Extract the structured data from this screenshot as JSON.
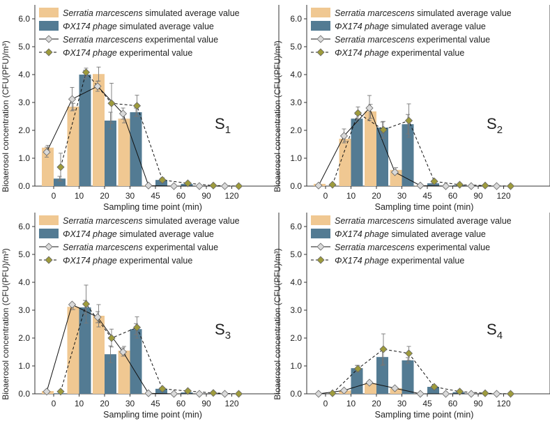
{
  "colors": {
    "serratia_sim": "#f0c892",
    "phage_sim": "#537b93",
    "serratia_exp_marker": "#d9d9d9",
    "phage_exp_marker": "#9e9b3c",
    "axis": "#333333"
  },
  "legend": {
    "serratia_sim_italic": "Serratia marcescens",
    "serratia_sim_rest": " simulated average value",
    "phage_sim_italic": "ΦX174 phage",
    "phage_sim_rest": " simulated average value",
    "serratia_exp_italic": "Serratia marcescens",
    "serratia_exp_rest": " experimental value",
    "phage_exp_italic": "ΦX174 phage",
    "phage_exp_rest": " experimental value"
  },
  "chart_data": [
    {
      "type": "bar",
      "panel_label": "S",
      "panel_sub": "1",
      "categories": [
        "0",
        "10",
        "20",
        "30",
        "45",
        "60",
        "90",
        "120"
      ],
      "xlabel": "Sampling time point (min)",
      "ylabel": "Bioaerosol concentration (CFU(PFU)/m³)",
      "ylim": [
        0,
        6.5
      ],
      "yticks": [
        "0.0",
        "1.0",
        "2.0",
        "3.0",
        "4.0",
        "5.0",
        "6.0"
      ],
      "legend_location": "upper-left",
      "series": [
        {
          "name": "Serratia marcescens simulated average value",
          "kind": "bar",
          "values": [
            1.38,
            2.85,
            4.02,
            2.42,
            0.02,
            0.0,
            0.0,
            0.0
          ],
          "errors": [
            0.08,
            0.12,
            0.25,
            0.15,
            0,
            0,
            0,
            0
          ]
        },
        {
          "name": "ΦX174 phage simulated average value",
          "kind": "bar",
          "values": [
            0.27,
            4.0,
            2.35,
            2.65,
            0.22,
            0.08,
            0.0,
            0.0
          ],
          "errors": [
            0.08,
            0.15,
            0.3,
            0.15,
            0.05,
            0.02,
            0,
            0
          ]
        },
        {
          "name": "Serratia marcescens experimental value",
          "kind": "line",
          "values": [
            1.22,
            3.12,
            3.58,
            2.6,
            0.02,
            0.0,
            0.0,
            0.0
          ],
          "errors": [
            0.18,
            0.42,
            0.18,
            0.2,
            0,
            0,
            0,
            0
          ]
        },
        {
          "name": "ΦX174 phage experimental value",
          "kind": "line",
          "values": [
            0.68,
            4.08,
            2.97,
            2.88,
            0.22,
            0.1,
            0.02,
            0.0
          ],
          "errors": [
            0.5,
            0.15,
            0.72,
            0.38,
            0.08,
            0.03,
            0,
            0
          ]
        }
      ]
    },
    {
      "type": "bar",
      "panel_label": "S",
      "panel_sub": "2",
      "categories": [
        "0",
        "10",
        "20",
        "30",
        "45",
        "60",
        "90",
        "120"
      ],
      "xlabel": "Sampling time point (min)",
      "ylabel": "Bioaerosol concentration (CFU(PFU)/m³)",
      "ylim": [
        0,
        6.5
      ],
      "yticks": [
        "0.0",
        "1.0",
        "2.0",
        "3.0",
        "4.0",
        "5.0",
        "6.0"
      ],
      "legend_location": "upper-left",
      "series": [
        {
          "name": "Serratia marcescens simulated average value",
          "kind": "bar",
          "values": [
            0.08,
            1.7,
            2.68,
            0.58,
            0.02,
            0.0,
            0.0,
            0.0
          ],
          "errors": [
            0,
            0.1,
            0.25,
            0.08,
            0,
            0,
            0,
            0
          ]
        },
        {
          "name": "ΦX174 phage simulated average value",
          "kind": "bar",
          "values": [
            0.0,
            2.42,
            2.1,
            2.22,
            0.1,
            0.03,
            0.0,
            0.0
          ],
          "errors": [
            0,
            0.15,
            0.2,
            0.35,
            0.03,
            0.01,
            0,
            0
          ]
        },
        {
          "name": "Serratia marcescens experimental value",
          "kind": "line",
          "values": [
            0.02,
            1.8,
            2.8,
            0.5,
            0.02,
            0.0,
            0.0,
            0.0
          ],
          "errors": [
            0,
            0.25,
            0.45,
            0.05,
            0,
            0,
            0,
            0
          ]
        },
        {
          "name": "ΦX174 phage experimental value",
          "kind": "line",
          "values": [
            0.05,
            2.62,
            2.02,
            2.35,
            0.17,
            0.05,
            0.02,
            0.0
          ],
          "errors": [
            0,
            0.22,
            0.3,
            0.6,
            0.05,
            0.02,
            0,
            0
          ]
        }
      ]
    },
    {
      "type": "bar",
      "panel_label": "S",
      "panel_sub": "3",
      "categories": [
        "0",
        "10",
        "20",
        "30",
        "45",
        "60",
        "90",
        "120"
      ],
      "xlabel": "Sampling time point (min)",
      "ylabel": "Bioaerosol concentration (CFU(PFU)/m³)",
      "ylim": [
        0,
        6.5
      ],
      "yticks": [
        "0.0",
        "1.0",
        "2.0",
        "3.0",
        "4.0",
        "5.0",
        "6.0"
      ],
      "legend_location": "upper-left",
      "series": [
        {
          "name": "Serratia marcescens simulated average value",
          "kind": "bar",
          "values": [
            0.1,
            3.12,
            2.8,
            1.55,
            0.02,
            0.0,
            0.0,
            0.0
          ],
          "errors": [
            0,
            0.1,
            0.4,
            0.15,
            0,
            0,
            0,
            0
          ]
        },
        {
          "name": "ΦX174 phage simulated average value",
          "kind": "bar",
          "values": [
            0.02,
            3.1,
            1.42,
            2.32,
            0.18,
            0.05,
            0.0,
            0.0
          ],
          "errors": [
            0,
            0.25,
            0.3,
            0.2,
            0.04,
            0.01,
            0,
            0
          ]
        },
        {
          "name": "Serratia marcescens experimental value",
          "kind": "line",
          "values": [
            0.08,
            3.2,
            2.75,
            1.5,
            0.02,
            0.0,
            0.0,
            0.0
          ],
          "errors": [
            0,
            0.05,
            0.2,
            0.15,
            0,
            0,
            0,
            0
          ]
        },
        {
          "name": "ΦX174 phage experimental value",
          "kind": "line",
          "values": [
            0.08,
            3.22,
            2.0,
            2.38,
            0.18,
            0.1,
            0.03,
            0.0
          ],
          "errors": [
            0,
            0.68,
            0.32,
            0.38,
            0.05,
            0.03,
            0,
            0
          ]
        }
      ]
    },
    {
      "type": "bar",
      "panel_label": "S",
      "panel_sub": "4",
      "categories": [
        "0",
        "10",
        "20",
        "30",
        "45",
        "60",
        "90",
        "120"
      ],
      "xlabel": "Sampling time point (min)",
      "ylabel": "Bioaerosol concentration (CFU(PFU)/m³)",
      "ylim": [
        0,
        6.5
      ],
      "yticks": [
        "0.0",
        "1.0",
        "2.0",
        "3.0",
        "4.0",
        "5.0",
        "6.0"
      ],
      "legend_location": "upper-left",
      "series": [
        {
          "name": "Serratia marcescens simulated average value",
          "kind": "bar",
          "values": [
            0.0,
            0.12,
            0.38,
            0.2,
            0.0,
            0.0,
            0.0,
            0.0
          ],
          "errors": [
            0,
            0,
            0,
            0,
            0,
            0,
            0,
            0
          ]
        },
        {
          "name": "ΦX174 phage simulated average value",
          "kind": "bar",
          "values": [
            0.0,
            0.92,
            1.32,
            1.2,
            0.25,
            0.06,
            0.0,
            0.0
          ],
          "errors": [
            0,
            0.1,
            0.3,
            0.1,
            0.04,
            0.01,
            0,
            0
          ]
        },
        {
          "name": "Serratia marcescens experimental value",
          "kind": "line",
          "values": [
            0.0,
            0.12,
            0.4,
            0.2,
            0.0,
            0.0,
            0.0,
            0.0
          ],
          "errors": [
            0,
            0,
            0.05,
            0.04,
            0,
            0,
            0,
            0
          ]
        },
        {
          "name": "ΦX174 phage experimental value",
          "kind": "line",
          "values": [
            0.02,
            0.9,
            1.6,
            1.45,
            0.25,
            0.08,
            0.02,
            0.0
          ],
          "errors": [
            0,
            0.12,
            0.55,
            0.25,
            0.05,
            0.02,
            0,
            0
          ]
        }
      ]
    }
  ]
}
